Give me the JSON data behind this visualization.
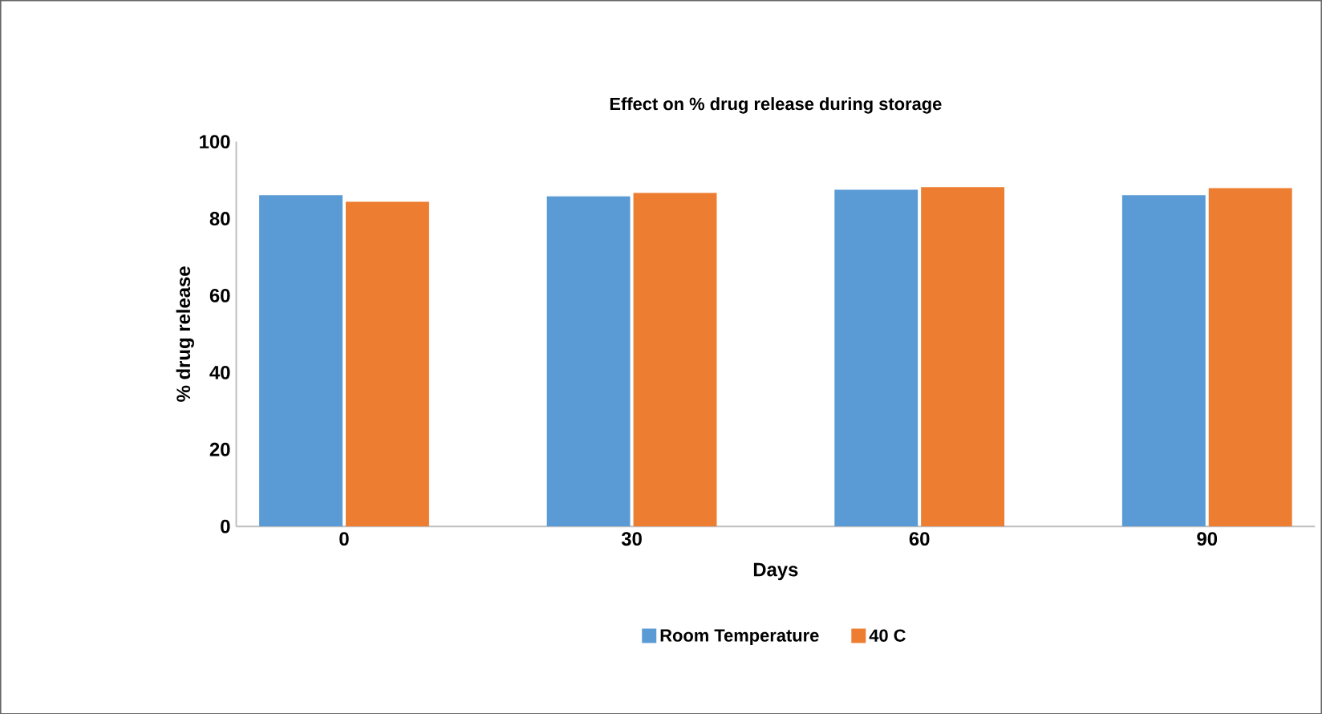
{
  "chart_data": {
    "type": "bar",
    "title": "Effect on % drug release during storage",
    "xlabel": "Days",
    "ylabel": "% drug release",
    "categories": [
      "0",
      "30",
      "60",
      "90"
    ],
    "series": [
      {
        "name": "Room Temperature",
        "color": "#5b9bd5",
        "values": [
          86.1,
          85.8,
          87.5,
          86.1
        ]
      },
      {
        "name": "40 C",
        "color": "#ed7d31",
        "values": [
          84.4,
          86.7,
          88.2,
          87.9
        ]
      }
    ],
    "ylim": [
      0,
      100
    ],
    "yticks": [
      0,
      20,
      40,
      60,
      80,
      100
    ],
    "grid": false,
    "legend": "bottom"
  }
}
